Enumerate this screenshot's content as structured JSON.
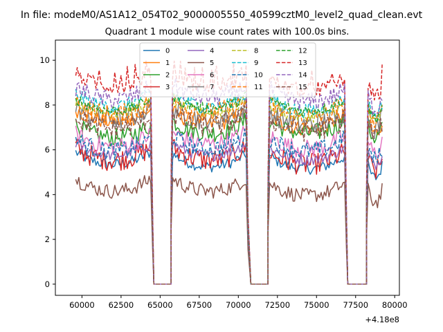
{
  "figure": {
    "suptitle": "In file: modeM0/AS1A12_054T02_9000005550_40599cztM0_level2_quad_clean.evt",
    "offset_label": "+4.18e8"
  },
  "chart_data": {
    "type": "line",
    "title": "Quadrant 1 module wise count rates with 100.0s bins.",
    "xlabel": "",
    "ylabel": "",
    "x_offset": 418000000,
    "xlim": [
      58300,
      80300
    ],
    "ylim": [
      -0.5,
      10.9
    ],
    "xticks": [
      60000,
      62500,
      65000,
      67500,
      70000,
      72500,
      75000,
      77500,
      80000
    ],
    "xtick_labels": [
      "60000",
      "62500",
      "65000",
      "67500",
      "70000",
      "72500",
      "75000",
      "77500",
      "80000"
    ],
    "yticks": [
      0,
      2,
      4,
      6,
      8,
      10
    ],
    "ytick_labels": [
      "0",
      "2",
      "4",
      "6",
      "8",
      "10"
    ],
    "grid": false,
    "legend_position": "upper center",
    "legend_columns": 4,
    "segments": [
      {
        "x_start": 59600,
        "x_end": 64400
      },
      {
        "x_start": 65800,
        "x_end": 70500
      },
      {
        "x_start": 72000,
        "x_end": 76800
      },
      {
        "x_start": 78300,
        "x_end": 79200
      }
    ],
    "zero_gaps": [
      {
        "x_start": 64600,
        "x_end": 65700
      },
      {
        "x_start": 70800,
        "x_end": 71900
      },
      {
        "x_start": 77000,
        "x_end": 78200
      }
    ],
    "series": [
      {
        "name": "0",
        "color": "#1f77b4",
        "dash": "solid",
        "levels": [
          5.6,
          5.5,
          5.4,
          5.0
        ]
      },
      {
        "name": "1",
        "color": "#ff7f0e",
        "dash": "solid",
        "levels": [
          7.5,
          7.4,
          7.2,
          7.0
        ]
      },
      {
        "name": "2",
        "color": "#2ca02c",
        "dash": "solid",
        "levels": [
          6.8,
          7.0,
          7.0,
          6.8
        ]
      },
      {
        "name": "3",
        "color": "#d62728",
        "dash": "solid",
        "levels": [
          5.8,
          5.8,
          5.6,
          5.3
        ]
      },
      {
        "name": "4",
        "color": "#9467bd",
        "dash": "solid",
        "levels": [
          6.0,
          6.0,
          5.8,
          5.6
        ]
      },
      {
        "name": "5",
        "color": "#8c564b",
        "dash": "solid",
        "levels": [
          4.4,
          4.4,
          4.2,
          3.9
        ]
      },
      {
        "name": "6",
        "color": "#e377c2",
        "dash": "solid",
        "levels": [
          6.4,
          6.5,
          6.3,
          6.1
        ]
      },
      {
        "name": "7",
        "color": "#7f7f7f",
        "dash": "solid",
        "levels": [
          7.6,
          7.6,
          7.4,
          7.2
        ]
      },
      {
        "name": "8",
        "color": "#bcbd22",
        "dash": "dashed",
        "levels": [
          7.9,
          7.9,
          7.7,
          7.5
        ]
      },
      {
        "name": "9",
        "color": "#17becf",
        "dash": "dashed",
        "levels": [
          8.2,
          8.2,
          8.0,
          7.8
        ]
      },
      {
        "name": "10",
        "color": "#1f77b4",
        "dash": "dashed",
        "levels": [
          6.2,
          6.3,
          6.2,
          5.8
        ]
      },
      {
        "name": "11",
        "color": "#ff7f0e",
        "dash": "dashed",
        "levels": [
          7.8,
          7.9,
          7.7,
          7.4
        ]
      },
      {
        "name": "12",
        "color": "#2ca02c",
        "dash": "dashed",
        "levels": [
          8.0,
          8.1,
          8.0,
          7.7
        ]
      },
      {
        "name": "13",
        "color": "#d62728",
        "dash": "dashed",
        "levels": [
          9.1,
          9.1,
          8.9,
          8.6
        ]
      },
      {
        "name": "14",
        "color": "#9467bd",
        "dash": "dashed",
        "levels": [
          8.5,
          8.6,
          8.4,
          8.1
        ]
      },
      {
        "name": "15",
        "color": "#8c564b",
        "dash": "dashed",
        "levels": [
          7.2,
          7.3,
          7.1,
          6.9
        ]
      }
    ]
  }
}
